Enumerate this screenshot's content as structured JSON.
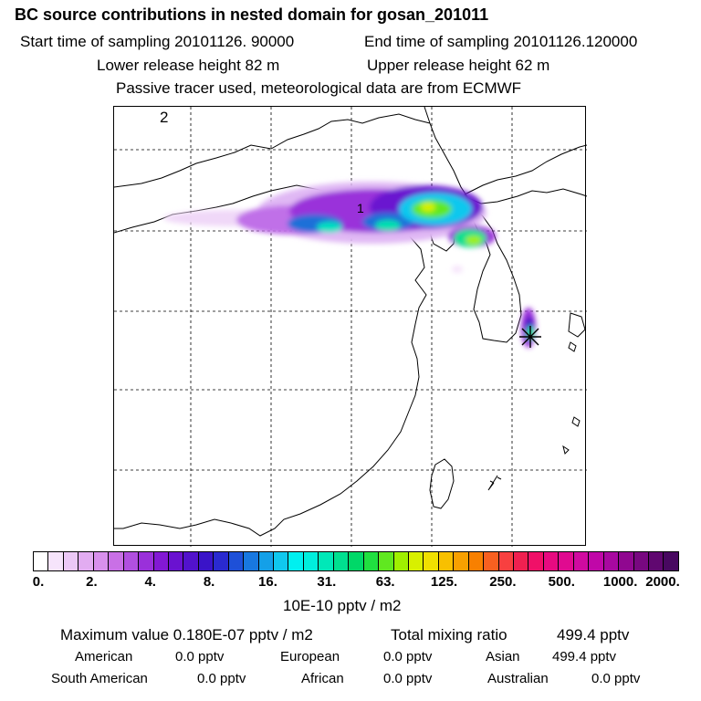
{
  "header": {
    "title": "BC  source contributions in nested domain for gosan_201011",
    "start_label": "Start time of sampling 20101126. 90000",
    "end_label": "End time of sampling 20101126.120000",
    "lower_label": "Lower release height   82 m",
    "upper_label": "Upper release height   62 m",
    "tracer_note": "Passive tracer used, meteorological data are from ECMWF"
  },
  "chart_data": {
    "type": "heatmap",
    "panel_label": "2",
    "point_label": "1",
    "receptor_marker": "star-icon",
    "colorbar": {
      "units": "10E-10 pptv / m2",
      "tick_labels": [
        "0.",
        "2.",
        "4.",
        "8.",
        "16.",
        "31.",
        "63.",
        "125.",
        "250.",
        "500.",
        "1000.",
        "2000."
      ],
      "colors": [
        "#ffffff",
        "#f6e4fb",
        "#ecc8f6",
        "#e2acf1",
        "#d890ec",
        "#c970e6",
        "#b14fe0",
        "#9a30da",
        "#8318d4",
        "#6a12d0",
        "#5212cc",
        "#3a14c8",
        "#2a2ad0",
        "#1e50d8",
        "#1878e0",
        "#14a0e8",
        "#10c8ee",
        "#00f0f0",
        "#00eedd",
        "#00e8b8",
        "#00e090",
        "#00d868",
        "#20e040",
        "#60e820",
        "#a0f000",
        "#d8f000",
        "#f0e000",
        "#f8c000",
        "#f8a000",
        "#f88000",
        "#f86020",
        "#f84040",
        "#f02050",
        "#f01068",
        "#e80a80",
        "#e00a90",
        "#d00aa0",
        "#c008a8",
        "#a808a0",
        "#900890",
        "#780880",
        "#600870",
        "#480860"
      ]
    }
  },
  "stats": {
    "max_label": "Maximum value  0.180E-07 pptv / m2",
    "total_label": "Total mixing ratio",
    "total_value": "499.4 pptv",
    "rows": [
      {
        "name": "American",
        "value": "0.0 pptv"
      },
      {
        "name": "European",
        "value": "0.0 pptv"
      },
      {
        "name": "Asian",
        "value": "499.4 pptv"
      },
      {
        "name": "South American",
        "value": "0.0 pptv"
      },
      {
        "name": "African",
        "value": "0.0 pptv"
      },
      {
        "name": "Australian",
        "value": "0.0 pptv"
      }
    ]
  }
}
